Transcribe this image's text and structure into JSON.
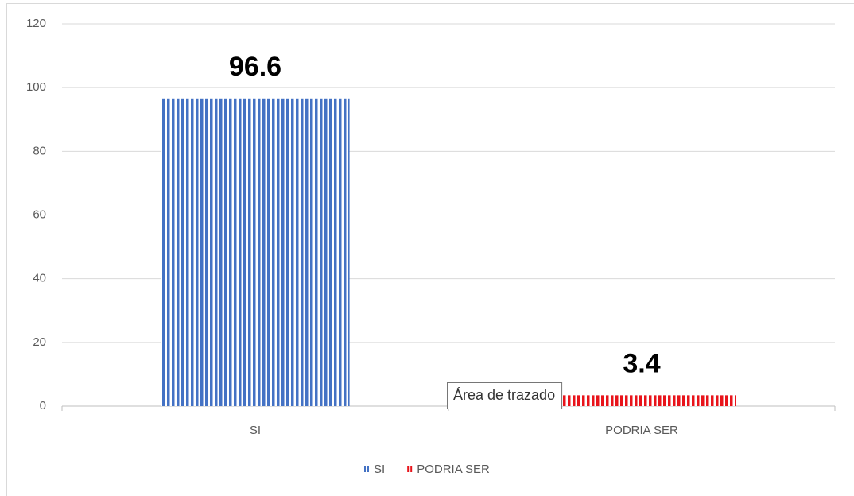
{
  "chart_data": {
    "type": "bar",
    "categories": [
      "SI",
      "PODRIA SER"
    ],
    "series": [
      {
        "name": "SI",
        "color": "#4472c4",
        "values": [
          96.6,
          null
        ]
      },
      {
        "name": "PODRIA SER",
        "color": "#e8141b",
        "values": [
          null,
          3.4
        ]
      }
    ],
    "ylim": [
      0,
      120
    ],
    "yticks": [
      0,
      20,
      40,
      60,
      80,
      100,
      120
    ],
    "grid": true,
    "legend": "bottom",
    "tooltip": "Área de trazado"
  }
}
